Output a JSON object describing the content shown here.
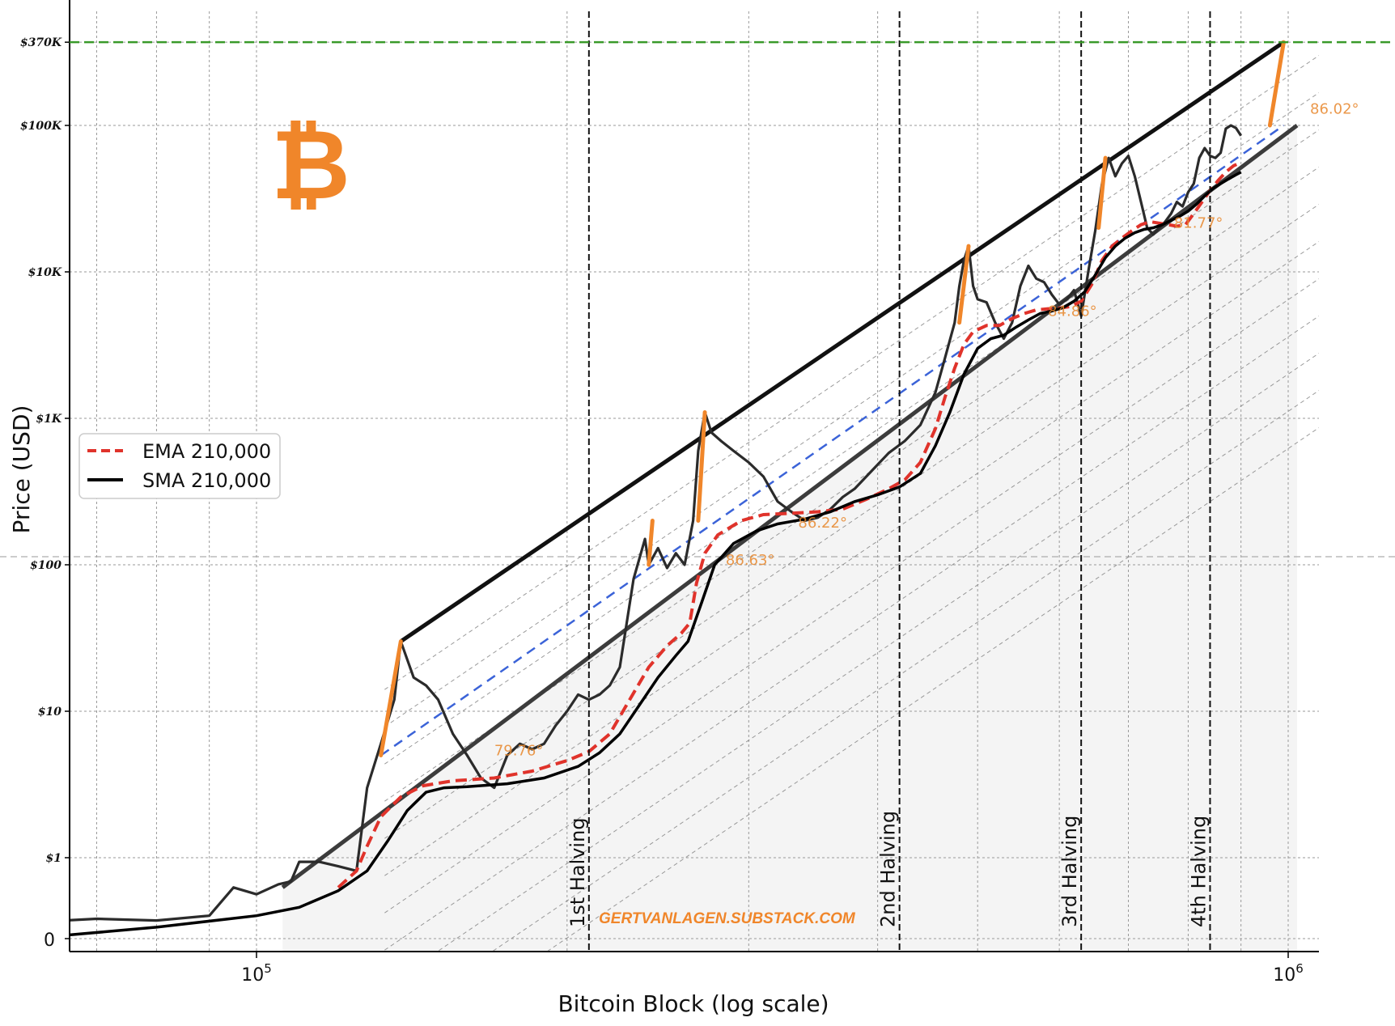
{
  "logo": {
    "symbol": "₿",
    "color": "#f0862a"
  },
  "watermark": "GERTVANLAGEN.SUBSTACK.COM",
  "colors": {
    "price": "#2b2b2b",
    "ema": "#e0332b",
    "sma": "#000000",
    "channel": "#111111",
    "mid_channel": "#3b63d8",
    "ath_line": "#3a9a2a",
    "cycle_spike": "#f0862a",
    "shade": "#f3f3f3"
  },
  "chart_data": {
    "type": "line",
    "title": "",
    "xlabel": "Bitcoin Block (log scale)",
    "ylabel": "Price (USD)",
    "x_scale": "log",
    "y_scale": "log (symlog near 0)",
    "xlim": [
      60000,
      1020000
    ],
    "grid": true,
    "legend_position": "center-left",
    "x_ticks": [
      {
        "value": 100000,
        "label": "10",
        "exp": "5"
      },
      {
        "value": 1000000,
        "label": "10",
        "exp": "6"
      }
    ],
    "y_ticks": [
      {
        "value": 0,
        "label": "0"
      },
      {
        "value": 1,
        "label": "$1"
      },
      {
        "value": 10,
        "label": "$10"
      },
      {
        "value": 100,
        "label": "$100"
      },
      {
        "value": 1000,
        "label": "$1K"
      },
      {
        "value": 10000,
        "label": "$10K"
      },
      {
        "value": 100000,
        "label": "$100K"
      },
      {
        "value": 370000,
        "label": "$370K"
      }
    ],
    "halvings": [
      {
        "block": 210000,
        "label": "1st Halving"
      },
      {
        "block": 420000,
        "label": "2nd Halving"
      },
      {
        "block": 630000,
        "label": "3rd Halving"
      },
      {
        "block": 840000,
        "label": "4th Halving"
      }
    ],
    "legend": [
      {
        "name": "EMA 210,000",
        "style": "dashed",
        "color": "#e0332b"
      },
      {
        "name": "SMA 210,000",
        "style": "solid",
        "color": "#000000"
      }
    ],
    "series": [
      {
        "name": "price",
        "points": [
          [
            60000,
            0
          ],
          [
            65000,
            0.05
          ],
          [
            70000,
            0.06
          ],
          [
            80000,
            0.05
          ],
          [
            90000,
            0.08
          ],
          [
            95000,
            0.4
          ],
          [
            100000,
            0.3
          ],
          [
            105000,
            0.45
          ],
          [
            108000,
            0.5
          ],
          [
            110000,
            0.9
          ],
          [
            115000,
            0.9
          ],
          [
            120000,
            0.8
          ],
          [
            125000,
            0.7
          ],
          [
            128000,
            3
          ],
          [
            132000,
            6
          ],
          [
            136000,
            12
          ],
          [
            138000,
            30
          ],
          [
            142000,
            17
          ],
          [
            146000,
            15
          ],
          [
            150000,
            12
          ],
          [
            155000,
            7
          ],
          [
            160000,
            5
          ],
          [
            165000,
            3.5
          ],
          [
            170000,
            3
          ],
          [
            175000,
            5
          ],
          [
            180000,
            6
          ],
          [
            185000,
            5.5
          ],
          [
            190000,
            6
          ],
          [
            195000,
            8
          ],
          [
            200000,
            10
          ],
          [
            205000,
            13
          ],
          [
            210000,
            12
          ],
          [
            215000,
            13
          ],
          [
            220000,
            15
          ],
          [
            225000,
            20
          ],
          [
            232000,
            80
          ],
          [
            238000,
            150
          ],
          [
            240000,
            100
          ],
          [
            245000,
            130
          ],
          [
            250000,
            95
          ],
          [
            255000,
            120
          ],
          [
            260000,
            100
          ],
          [
            265000,
            200
          ],
          [
            268000,
            600
          ],
          [
            272000,
            1100
          ],
          [
            276000,
            800
          ],
          [
            282000,
            700
          ],
          [
            290000,
            600
          ],
          [
            300000,
            500
          ],
          [
            310000,
            400
          ],
          [
            320000,
            270
          ],
          [
            330000,
            230
          ],
          [
            340000,
            200
          ],
          [
            350000,
            210
          ],
          [
            360000,
            240
          ],
          [
            370000,
            290
          ],
          [
            380000,
            330
          ],
          [
            395000,
            440
          ],
          [
            410000,
            580
          ],
          [
            425000,
            700
          ],
          [
            440000,
            900
          ],
          [
            455000,
            1500
          ],
          [
            465000,
            2600
          ],
          [
            475000,
            4500
          ],
          [
            480000,
            8000
          ],
          [
            485000,
            12000
          ],
          [
            490000,
            15000
          ],
          [
            495000,
            8000
          ],
          [
            500000,
            6500
          ],
          [
            510000,
            6200
          ],
          [
            520000,
            4500
          ],
          [
            530000,
            3500
          ],
          [
            540000,
            4500
          ],
          [
            550000,
            8000
          ],
          [
            560000,
            11000
          ],
          [
            570000,
            9000
          ],
          [
            580000,
            8500
          ],
          [
            590000,
            7000
          ],
          [
            600000,
            6000
          ],
          [
            610000,
            6500
          ],
          [
            620000,
            7500
          ],
          [
            630000,
            5000
          ],
          [
            640000,
            10000
          ],
          [
            650000,
            19000
          ],
          [
            660000,
            40000
          ],
          [
            670000,
            60000
          ],
          [
            680000,
            45000
          ],
          [
            690000,
            55000
          ],
          [
            700000,
            62000
          ],
          [
            710000,
            45000
          ],
          [
            720000,
            30000
          ],
          [
            730000,
            20000
          ],
          [
            740000,
            18000
          ],
          [
            750000,
            20000
          ],
          [
            760000,
            22000
          ],
          [
            770000,
            25000
          ],
          [
            780000,
            30000
          ],
          [
            790000,
            28000
          ],
          [
            800000,
            35000
          ],
          [
            810000,
            40000
          ],
          [
            820000,
            60000
          ],
          [
            830000,
            70000
          ],
          [
            840000,
            62000
          ],
          [
            850000,
            60000
          ],
          [
            860000,
            65000
          ],
          [
            870000,
            95000
          ],
          [
            880000,
            100000
          ],
          [
            890000,
            96000
          ],
          [
            900000,
            85000
          ]
        ]
      },
      {
        "name": "EMA 210,000",
        "points": [
          [
            120000,
            0.4
          ],
          [
            125000,
            0.7
          ],
          [
            128000,
            1.2
          ],
          [
            132000,
            1.9
          ],
          [
            138000,
            2.6
          ],
          [
            145000,
            3.1
          ],
          [
            155000,
            3.35
          ],
          [
            170000,
            3.5
          ],
          [
            185000,
            3.9
          ],
          [
            200000,
            4.6
          ],
          [
            210000,
            5.3
          ],
          [
            220000,
            7
          ],
          [
            230000,
            12
          ],
          [
            240000,
            20
          ],
          [
            250000,
            28
          ],
          [
            258000,
            34
          ],
          [
            263000,
            40
          ],
          [
            267000,
            75
          ],
          [
            272000,
            120
          ],
          [
            280000,
            160
          ],
          [
            295000,
            200
          ],
          [
            310000,
            220
          ],
          [
            330000,
            225
          ],
          [
            350000,
            230
          ],
          [
            370000,
            240
          ],
          [
            390000,
            280
          ],
          [
            410000,
            330
          ],
          [
            425000,
            380
          ],
          [
            440000,
            500
          ],
          [
            455000,
            850
          ],
          [
            465000,
            1400
          ],
          [
            475000,
            2200
          ],
          [
            485000,
            3200
          ],
          [
            495000,
            3900
          ],
          [
            510000,
            4300
          ],
          [
            525000,
            4300
          ],
          [
            540000,
            4800
          ],
          [
            555000,
            5200
          ],
          [
            570000,
            5500
          ],
          [
            585000,
            5600
          ],
          [
            600000,
            5650
          ],
          [
            615000,
            5800
          ],
          [
            630000,
            6300
          ],
          [
            645000,
            8200
          ],
          [
            660000,
            12000
          ],
          [
            675000,
            15000
          ],
          [
            690000,
            17000
          ],
          [
            705000,
            19000
          ],
          [
            720000,
            21000
          ],
          [
            735000,
            22000
          ],
          [
            750000,
            21500
          ],
          [
            765000,
            21000
          ],
          [
            780000,
            20500
          ],
          [
            795000,
            21000
          ],
          [
            810000,
            25000
          ],
          [
            825000,
            30000
          ],
          [
            840000,
            36000
          ],
          [
            855000,
            42000
          ],
          [
            870000,
            48000
          ],
          [
            885000,
            53000
          ],
          [
            900000,
            56000
          ]
        ]
      },
      {
        "name": "SMA 210,000",
        "points": [
          [
            60000,
            0
          ],
          [
            80000,
            0.02
          ],
          [
            100000,
            0.08
          ],
          [
            110000,
            0.15
          ],
          [
            120000,
            0.35
          ],
          [
            128000,
            0.7
          ],
          [
            134000,
            1.3
          ],
          [
            140000,
            2.1
          ],
          [
            146000,
            2.8
          ],
          [
            152000,
            3.0
          ],
          [
            160000,
            3.05
          ],
          [
            175000,
            3.2
          ],
          [
            190000,
            3.5
          ],
          [
            205000,
            4.2
          ],
          [
            215000,
            5.2
          ],
          [
            225000,
            7
          ],
          [
            235000,
            11
          ],
          [
            245000,
            17
          ],
          [
            255000,
            24
          ],
          [
            262000,
            30
          ],
          [
            270000,
            55
          ],
          [
            278000,
            100
          ],
          [
            290000,
            140
          ],
          [
            305000,
            170
          ],
          [
            320000,
            190
          ],
          [
            340000,
            205
          ],
          [
            360000,
            230
          ],
          [
            380000,
            270
          ],
          [
            400000,
            300
          ],
          [
            420000,
            340
          ],
          [
            440000,
            420
          ],
          [
            455000,
            650
          ],
          [
            470000,
            1100
          ],
          [
            485000,
            2000
          ],
          [
            500000,
            3000
          ],
          [
            515000,
            3500
          ],
          [
            530000,
            3700
          ],
          [
            545000,
            4200
          ],
          [
            560000,
            4700
          ],
          [
            575000,
            5200
          ],
          [
            590000,
            5400
          ],
          [
            605000,
            5700
          ],
          [
            620000,
            6300
          ],
          [
            635000,
            7300
          ],
          [
            650000,
            9500
          ],
          [
            665000,
            12500
          ],
          [
            680000,
            15000
          ],
          [
            695000,
            17000
          ],
          [
            710000,
            18500
          ],
          [
            725000,
            19500
          ],
          [
            740000,
            20000
          ],
          [
            755000,
            21000
          ],
          [
            770000,
            22500
          ],
          [
            785000,
            24000
          ],
          [
            800000,
            26000
          ],
          [
            815000,
            29000
          ],
          [
            830000,
            33000
          ],
          [
            845000,
            37000
          ],
          [
            860000,
            40000
          ],
          [
            875000,
            43000
          ],
          [
            890000,
            46000
          ],
          [
            900000,
            48000
          ]
        ]
      }
    ],
    "channel_lines": [
      {
        "name": "upper",
        "points": [
          [
            138000,
            30
          ],
          [
            990000,
            370000
          ]
        ]
      },
      {
        "name": "lower",
        "points": [
          [
            106000,
            0.4
          ],
          [
            1020000,
            100000
          ]
        ]
      },
      {
        "name": "mid",
        "points": [
          [
            132000,
            5
          ],
          [
            990000,
            100000
          ]
        ]
      }
    ],
    "ath_level": 370000,
    "cycle_spikes": [
      {
        "from": [
          132000,
          5
        ],
        "to": [
          138000,
          30
        ]
      },
      {
        "from": [
          240000,
          100
        ],
        "to": [
          242000,
          200
        ]
      },
      {
        "from": [
          268000,
          200
        ],
        "to": [
          272000,
          1100
        ]
      },
      {
        "from": [
          480000,
          4500
        ],
        "to": [
          490000,
          15000
        ]
      },
      {
        "from": [
          655000,
          20000
        ],
        "to": [
          665000,
          60000
        ]
      },
      {
        "from": [
          960000,
          100000
        ],
        "to": [
          990000,
          370000
        ]
      }
    ],
    "angle_labels": [
      {
        "text": "79.76°",
        "at": [
          170000,
          5
        ]
      },
      {
        "text": "86.63°",
        "at": [
          285000,
          100
        ]
      },
      {
        "text": "86.22°",
        "at": [
          335000,
          180
        ]
      },
      {
        "text": "84.86°",
        "at": [
          585000,
          5000
        ]
      },
      {
        "text": "81.77°",
        "at": [
          775000,
          20000
        ]
      },
      {
        "text": "86.02°",
        "at": [
          1050000,
          120000
        ]
      }
    ]
  }
}
